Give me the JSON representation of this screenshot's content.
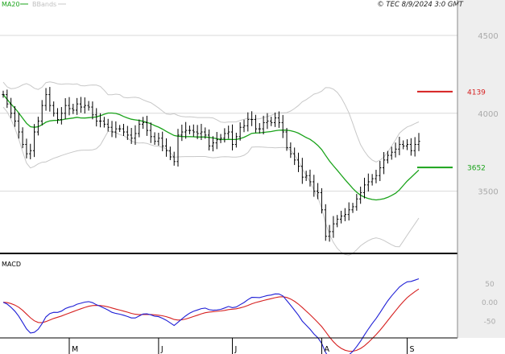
{
  "header": {
    "ma_label": "MA20",
    "bb_label": "BBands",
    "copyright": "© TEC 8/9/2024 3:0 GMT"
  },
  "colors": {
    "ma": "#1aa31a",
    "bands": "#c8c8c8",
    "price": "#000000",
    "macd_line": "#1f1fd6",
    "signal_line": "#d62020",
    "resistance": "#d62020",
    "support": "#1aa31a",
    "grid": "#d9d9d9",
    "gutter": "#eeeeee"
  },
  "chart_data": [
    {
      "type": "ohlc",
      "ylim": [
        3100,
        4650
      ],
      "yticks": [
        {
          "value": 4500,
          "label": "4500"
        },
        {
          "value": 4000,
          "label": "4000"
        },
        {
          "value": 3500,
          "label": "3500"
        }
      ],
      "x_labels": [
        {
          "index": 17,
          "label": "M"
        },
        {
          "index": 40,
          "label": "J"
        },
        {
          "index": 59,
          "label": "J"
        },
        {
          "index": 82,
          "label": "A"
        },
        {
          "index": 104,
          "label": "S"
        }
      ],
      "levels": [
        {
          "name": "resistance",
          "value": 4139,
          "label": "4139"
        },
        {
          "name": "support",
          "value": 3652,
          "label": "3652"
        }
      ],
      "close": [
        4120,
        4060,
        4000,
        3950,
        3880,
        3800,
        3740,
        3760,
        3880,
        3950,
        4050,
        4120,
        4050,
        4000,
        3960,
        4000,
        4050,
        4030,
        4020,
        4060,
        4040,
        4050,
        4040,
        3990,
        3950,
        3950,
        3930,
        3910,
        3880,
        3900,
        3900,
        3880,
        3860,
        3840,
        3870,
        3930,
        3940,
        3890,
        3850,
        3820,
        3840,
        3790,
        3760,
        3720,
        3690,
        3860,
        3880,
        3890,
        3890,
        3880,
        3870,
        3880,
        3860,
        3790,
        3810,
        3830,
        3840,
        3870,
        3880,
        3800,
        3850,
        3910,
        3920,
        3960,
        3960,
        3900,
        3900,
        3940,
        3950,
        3940,
        3970,
        3940,
        3880,
        3780,
        3740,
        3700,
        3660,
        3590,
        3600,
        3560,
        3500,
        3490,
        3380,
        3210,
        3240,
        3290,
        3320,
        3340,
        3350,
        3380,
        3400,
        3450,
        3490,
        3540,
        3560,
        3580,
        3600,
        3650,
        3700,
        3730,
        3750,
        3770,
        3800,
        3790,
        3800,
        3760,
        3800,
        3820
      ]
    },
    {
      "type": "line",
      "title": "MACD",
      "ylim": [
        -95,
        115
      ],
      "yticks": [
        {
          "value": 50,
          "label": "50"
        },
        {
          "value": 0,
          "label": "0.00"
        },
        {
          "value": -50,
          "label": "-50"
        }
      ]
    }
  ]
}
